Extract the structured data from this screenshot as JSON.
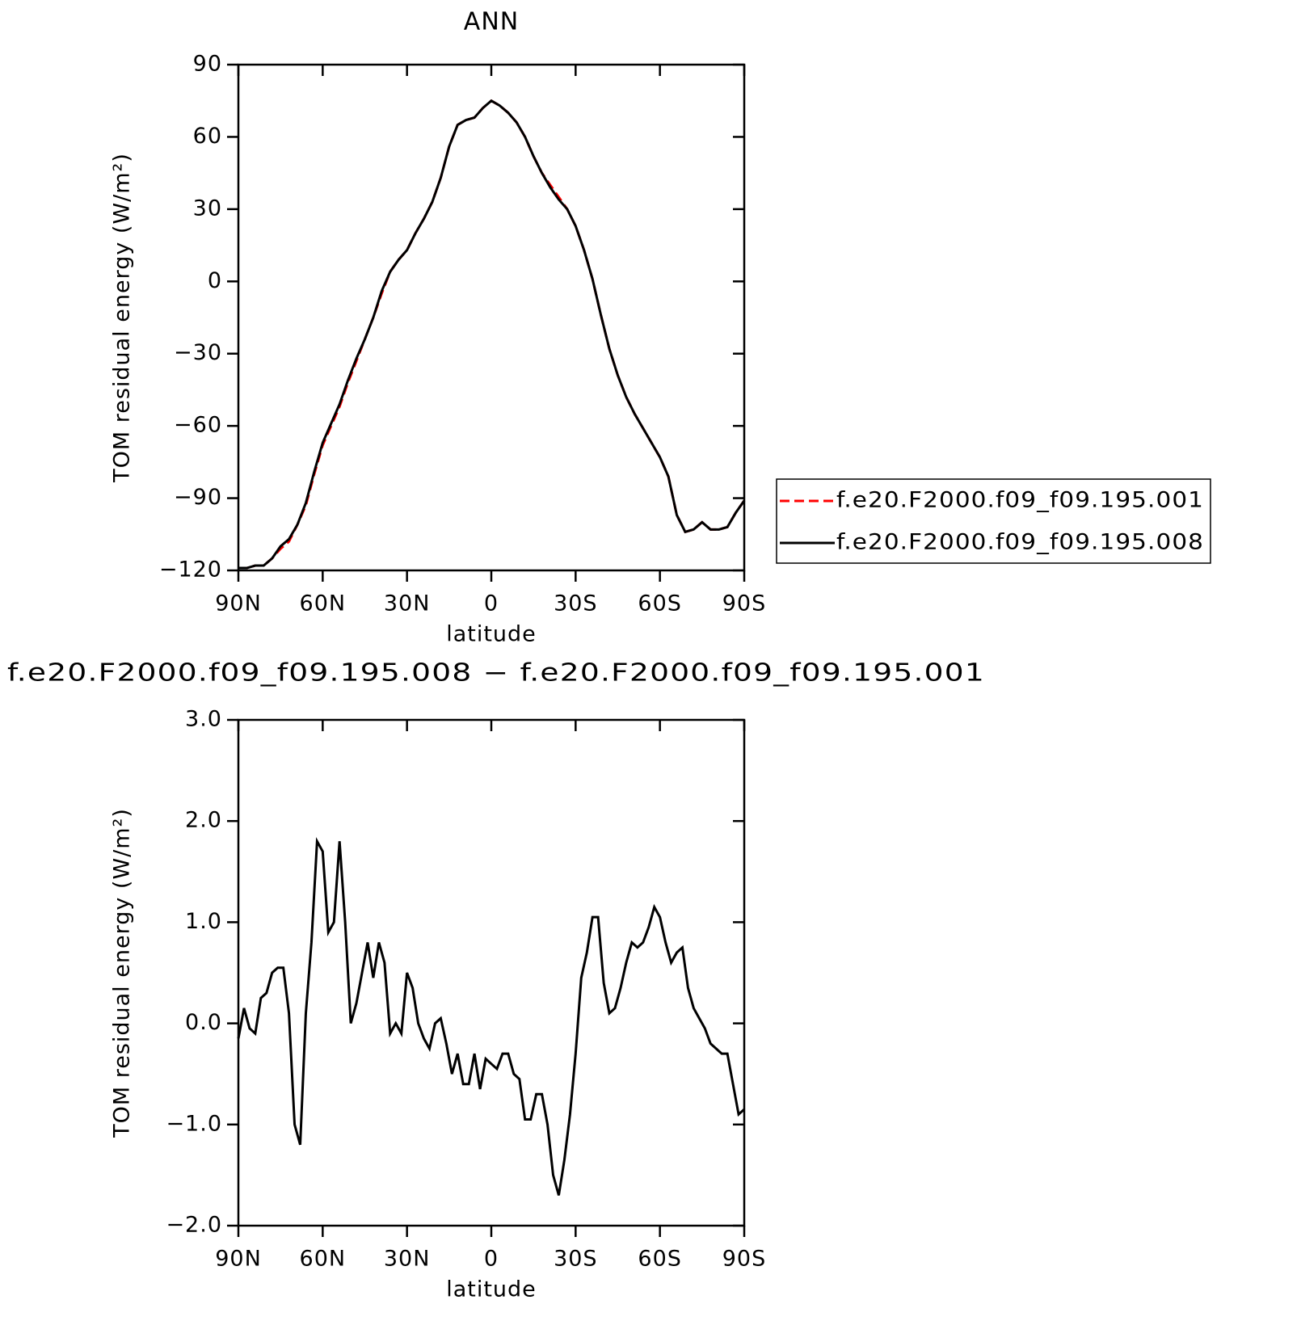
{
  "chart_data": [
    {
      "type": "line",
      "title": "ANN",
      "xlabel": "latitude",
      "ylabel": "TOM residual energy (W/m²)",
      "x": [
        90,
        87,
        84,
        81,
        78,
        75,
        72,
        69,
        66,
        63,
        60,
        57,
        54,
        51,
        48,
        45,
        42,
        39,
        36,
        33,
        30,
        27,
        24,
        21,
        18,
        15,
        12,
        9,
        6,
        3,
        0,
        -3,
        -6,
        -9,
        -12,
        -15,
        -18,
        -21,
        -24,
        -27,
        -30,
        -33,
        -36,
        -39,
        -42,
        -45,
        -48,
        -51,
        -54,
        -57,
        -60,
        -63,
        -66,
        -69,
        -72,
        -75,
        -78,
        -81,
        -84,
        -87,
        -90
      ],
      "series": [
        {
          "name": "f.e20.F2000.f09_f09.195.001",
          "color": "#ff0000",
          "style": "dashed",
          "values": [
            -119,
            -119,
            -118,
            -118,
            -115,
            -111,
            -108,
            -101,
            -93,
            -80,
            -68,
            -60,
            -52,
            -42,
            -33,
            -24,
            -15,
            -5,
            4,
            9,
            13,
            20,
            26,
            33,
            43,
            56,
            65,
            67,
            68,
            72,
            75,
            73,
            70,
            66,
            60,
            52,
            45,
            40,
            35,
            30,
            23,
            13,
            1,
            -14,
            -28,
            -39,
            -48,
            -55,
            -61,
            -67,
            -73,
            -81,
            -97,
            -104,
            -103,
            -100,
            -103,
            -103,
            -102,
            -96,
            -91
          ]
        },
        {
          "name": "f.e20.F2000.f09_f09.195.008",
          "color": "#000000",
          "style": "solid",
          "values": [
            -119,
            -119,
            -118,
            -118,
            -115,
            -110,
            -107,
            -101,
            -92,
            -79,
            -67,
            -59,
            -51,
            -41,
            -32,
            -24,
            -15,
            -4,
            4,
            9,
            13,
            20,
            26,
            33,
            43,
            56,
            65,
            67,
            68,
            72,
            75,
            73,
            70,
            66,
            60,
            52,
            45,
            39,
            34,
            30,
            23,
            13,
            1,
            -14,
            -28,
            -39,
            -48,
            -55,
            -61,
            -67,
            -73,
            -81,
            -97,
            -104,
            -103,
            -100,
            -103,
            -103,
            -102,
            -96,
            -91
          ]
        }
      ],
      "xlim": [
        90,
        -90
      ],
      "xticks": [
        {
          "value": 90,
          "label": "90N"
        },
        {
          "value": 60,
          "label": "60N"
        },
        {
          "value": 30,
          "label": "30N"
        },
        0,
        {
          "value": -30,
          "label": "30S"
        },
        {
          "value": -60,
          "label": "60S"
        },
        {
          "value": -90,
          "label": "90S"
        }
      ],
      "ylim": [
        -120,
        90
      ],
      "yticks": [
        {
          "value": -120,
          "label": "−120"
        },
        {
          "value": -90,
          "label": "−90"
        },
        {
          "value": -60,
          "label": "−60"
        },
        {
          "value": -30,
          "label": "−30"
        },
        0,
        30,
        60,
        90
      ],
      "legend": "right"
    },
    {
      "type": "line",
      "title": "f.e20.F2000.f09_f09.195.008 − f.e20.F2000.f09_f09.195.001",
      "xlabel": "latitude",
      "ylabel": "TOM residual energy (W/m²)",
      "x": [
        90,
        88,
        86,
        84,
        82,
        80,
        78,
        76,
        74,
        72,
        70,
        68,
        66,
        64,
        62,
        60,
        58,
        56,
        54,
        52,
        50,
        48,
        46,
        44,
        42,
        40,
        38,
        36,
        34,
        32,
        30,
        28,
        26,
        24,
        22,
        20,
        18,
        16,
        14,
        12,
        10,
        8,
        6,
        4,
        2,
        0,
        -2,
        -4,
        -6,
        -8,
        -10,
        -12,
        -14,
        -16,
        -18,
        -20,
        -22,
        -24,
        -26,
        -28,
        -30,
        -32,
        -34,
        -36,
        -38,
        -40,
        -42,
        -44,
        -46,
        -48,
        -50,
        -52,
        -54,
        -56,
        -58,
        -60,
        -62,
        -64,
        -66,
        -68,
        -70,
        -72,
        -74,
        -76,
        -78,
        -80,
        -82,
        -84,
        -86,
        -88,
        -90
      ],
      "series": [
        {
          "color": "#000000",
          "style": "solid",
          "values": [
            -0.15,
            0.15,
            -0.05,
            -0.1,
            0.25,
            0.3,
            0.5,
            0.55,
            0.55,
            0.1,
            -1.0,
            -1.2,
            0.1,
            0.8,
            1.8,
            1.7,
            0.9,
            1.0,
            1.8,
            1.0,
            0.0,
            0.2,
            0.5,
            0.8,
            0.45,
            0.8,
            0.6,
            -0.1,
            0.0,
            -0.1,
            0.5,
            0.35,
            0.0,
            -0.15,
            -0.25,
            0.0,
            0.05,
            -0.2,
            -0.5,
            -0.3,
            -0.6,
            -0.6,
            -0.3,
            -0.65,
            -0.35,
            -0.4,
            -0.45,
            -0.3,
            -0.3,
            -0.5,
            -0.55,
            -0.95,
            -0.95,
            -0.7,
            -0.7,
            -1.0,
            -1.5,
            -1.7,
            -1.35,
            -0.9,
            -0.3,
            0.45,
            0.7,
            1.05,
            1.05,
            0.4,
            0.1,
            0.15,
            0.35,
            0.6,
            0.8,
            0.75,
            0.8,
            0.95,
            1.15,
            1.05,
            0.8,
            0.6,
            0.7,
            0.75,
            0.35,
            0.15,
            0.05,
            -0.05,
            -0.2,
            -0.25,
            -0.3,
            -0.3,
            -0.6,
            -0.9,
            -0.85
          ]
        }
      ],
      "xlim": [
        90,
        -90
      ],
      "xticks": [
        {
          "value": 90,
          "label": "90N"
        },
        {
          "value": 60,
          "label": "60N"
        },
        {
          "value": 30,
          "label": "30N"
        },
        0,
        {
          "value": -30,
          "label": "30S"
        },
        {
          "value": -60,
          "label": "60S"
        },
        {
          "value": -90,
          "label": "90S"
        }
      ],
      "ylim": [
        -2,
        3
      ],
      "yticks": [
        {
          "value": -2,
          "label": "−2.0"
        },
        {
          "value": -1,
          "label": "−1.0"
        },
        {
          "value": 0,
          "label": "0.0"
        },
        {
          "value": 1,
          "label": "1.0"
        },
        {
          "value": 2,
          "label": "2.0"
        },
        {
          "value": 3,
          "label": "3.0"
        }
      ]
    }
  ]
}
